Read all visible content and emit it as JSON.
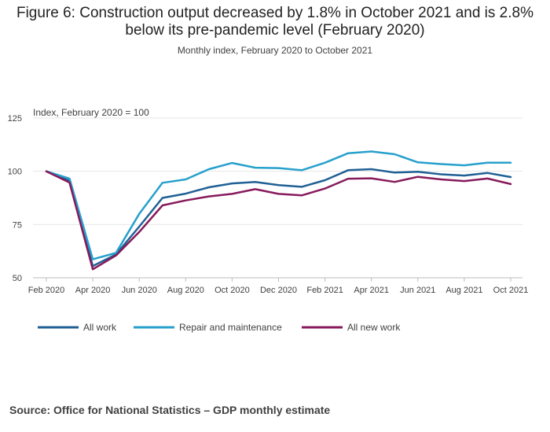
{
  "title": "Figure 6: Construction output decreased by 1.8% in October 2021 and is 2.8% below its pre-pandemic level (February 2020)",
  "subtitle": "Monthly index, February 2020 to October 2021",
  "source": "Source: Office for National Statistics – GDP monthly estimate",
  "colors": {
    "all_work": "#206095",
    "repair_and_maintenance": "#27a0cc",
    "all_new_work": "#871a5b"
  },
  "chart_data": {
    "type": "line",
    "ylabel": "Index, February 2020 = 100",
    "ylim": [
      50,
      125
    ],
    "y_ticks": [
      "125",
      "100",
      "75",
      "50"
    ],
    "grid": true,
    "legend_position": "bottom",
    "x": [
      "Feb 2020",
      "Mar 2020",
      "Apr 2020",
      "May 2020",
      "Jun 2020",
      "Jul 2020",
      "Aug 2020",
      "Sep 2020",
      "Oct 2020",
      "Nov 2020",
      "Dec 2020",
      "Jan 2021",
      "Feb 2021",
      "Mar 2021",
      "Apr 2021",
      "May 2021",
      "Jun 2021",
      "Jul 2021",
      "Aug 2021",
      "Sep 2021",
      "Oct 2021"
    ],
    "x_tick_labels": [
      "Feb 2020",
      "Apr 2020",
      "Jun 2020",
      "Aug 2020",
      "Oct 2020",
      "Dec 2020",
      "Feb 2021",
      "Apr 2021",
      "Jun 2021",
      "Aug 2021",
      "Oct 2021"
    ],
    "series": [
      {
        "name": "All work",
        "color": "#206095",
        "values": [
          100,
          95.5,
          55.5,
          61,
          74,
          87.5,
          89.5,
          92.5,
          94.3,
          95,
          93.5,
          92.7,
          95.8,
          100.5,
          101,
          99.4,
          99.8,
          98.6,
          98,
          99.2,
          97.3
        ]
      },
      {
        "name": "Repair and maintenance",
        "color": "#27a0cc",
        "values": [
          100,
          96.6,
          58.7,
          61.7,
          80,
          94.6,
          96.2,
          101,
          103.9,
          101.7,
          101.5,
          100.5,
          104,
          108.5,
          109.3,
          108,
          104.2,
          103.4,
          102.8,
          104,
          104
        ]
      },
      {
        "name": "All new work",
        "color": "#871a5b",
        "values": [
          100,
          94.7,
          54,
          60.5,
          71.5,
          84,
          86.3,
          88.2,
          89.4,
          91.6,
          89.4,
          88.7,
          91.9,
          96.5,
          96.7,
          95,
          97.4,
          96.2,
          95.4,
          96.6,
          94
        ]
      }
    ]
  }
}
